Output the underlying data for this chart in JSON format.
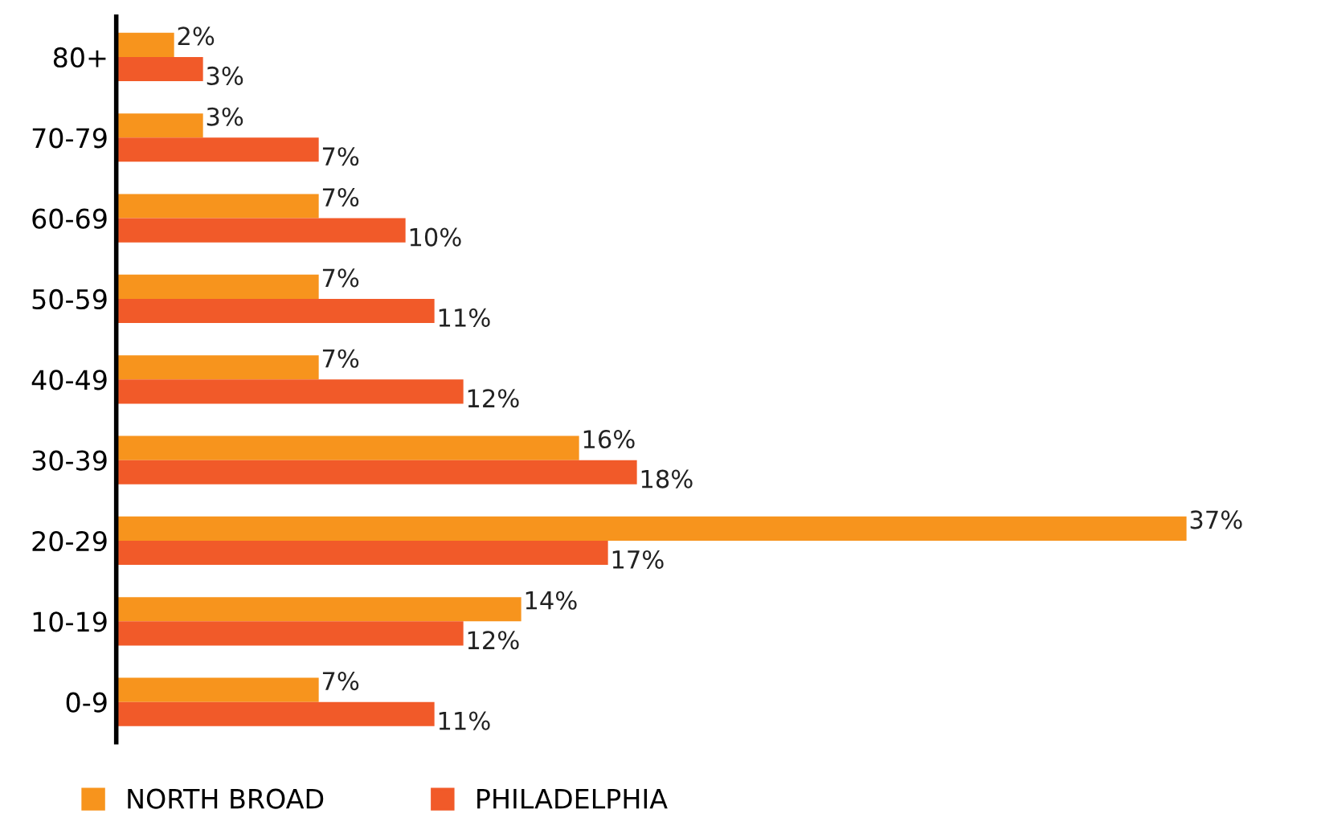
{
  "chart_data": {
    "type": "bar",
    "orientation": "horizontal",
    "categories": [
      "80+",
      "70-79",
      "60-69",
      "50-59",
      "40-49",
      "30-39",
      "20-29",
      "10-19",
      "0-9"
    ],
    "series": [
      {
        "name": "NORTH BROAD",
        "color": "#f7941d",
        "values": [
          2,
          3,
          7,
          7,
          7,
          16,
          37,
          14,
          7
        ],
        "value_labels": [
          "2%",
          "3%",
          "7%",
          "7%",
          "7%",
          "16%",
          "37%",
          "14%",
          "7%"
        ]
      },
      {
        "name": "PHILADELPHIA",
        "color": "#f15a29",
        "values": [
          3,
          7,
          10,
          11,
          12,
          18,
          17,
          12,
          11
        ],
        "value_labels": [
          "3%",
          "7%",
          "10%",
          "11%",
          "12%",
          "18%",
          "17%",
          "12%",
          "11%"
        ]
      }
    ],
    "tick_labels": "y",
    "grid": false,
    "legend": "bottom left"
  }
}
